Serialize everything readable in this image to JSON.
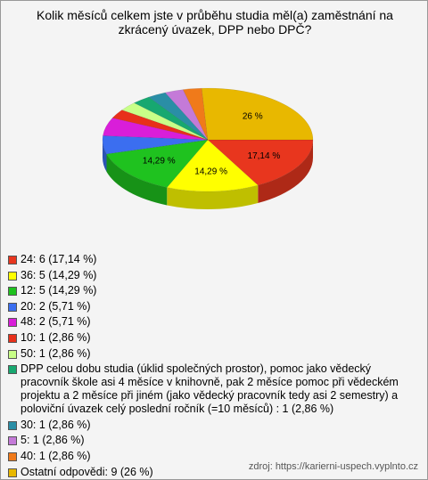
{
  "chart_data": {
    "type": "pie",
    "title": "Kolik měsíců celkem jste v průběhu studia měl(a) zaměstnání na zkrácený úvazek, DPP nebo DPČ?",
    "categories": [
      "24: 6 (17,14 %)",
      "36: 5 (14,29 %)",
      "12: 5 (14,29 %)",
      "20: 2 (5,71 %)",
      "48: 2 (5,71 %)",
      "10: 1 (2,86 %)",
      "50: 1 (2,86 %)",
      "DPP celou dobu studia (úklid společných prostor), pomoc jako vědecký pracovník škole asi 4 měsíce v knihovně, pak 2 měsíce pomoc při vědeckém projektu a 2 měsíce při jiném (jako vědecký pracovník tedy asi 2 semestry) a poloviční úvazek celý poslední ročník (=10 měsíců) : 1 (2,86 %)",
      "30: 1 (2,86 %)",
      "5: 1 (2,86 %)",
      "40: 1 (2,86 %)",
      "Ostatní odpovědi: 9 (26 %)"
    ],
    "values": [
      17.14,
      14.29,
      14.29,
      5.71,
      5.71,
      2.86,
      2.86,
      2.86,
      2.86,
      2.86,
      2.86,
      26
    ],
    "value_labels": [
      "17,14 %",
      "14,29 %",
      "14,29 %",
      null,
      null,
      null,
      null,
      null,
      null,
      null,
      null,
      "26 %"
    ],
    "colors": [
      "#e8361e",
      "#ffff00",
      "#1fc21f",
      "#3b6ef0",
      "#d91ed9",
      "#e8301a",
      "#c8ff88",
      "#17a870",
      "#2a8ea6",
      "#c47ad8",
      "#f07a1a",
      "#e8b800"
    ],
    "source": "zdroj: https://karierni-uspech.vyplnto.cz"
  }
}
